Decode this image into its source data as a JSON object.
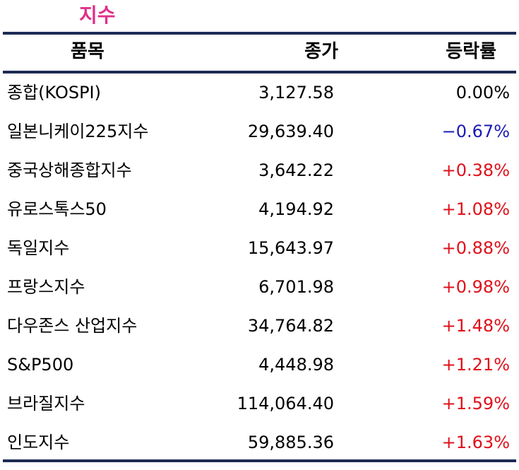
{
  "header": {
    "title": "지수"
  },
  "table": {
    "columns": [
      "품목",
      "종가",
      "등락률"
    ],
    "rows": [
      [
        "종합(KOSPI)",
        "3,127.58",
        "0.00%"
      ],
      [
        "일본니케이225지수",
        "29,639.40",
        "−0.67%"
      ],
      [
        "중국상해종합지수",
        "3,642.22",
        "+0.38%"
      ],
      [
        "유로스톡스50",
        "4,194.92",
        "+1.08%"
      ],
      [
        "독일지수",
        "15,643.97",
        "+0.88%"
      ],
      [
        "프랑스지수",
        "6,701.98",
        "+0.98%"
      ],
      [
        "다우존스 산업지수",
        "34,764.82",
        "+1.48%"
      ],
      [
        "S&P500",
        "4,448.98",
        "+1.21%"
      ],
      [
        "브라질지수",
        "114,064.40",
        "+1.59%"
      ],
      [
        "인도지수",
        "59,885.36",
        "+1.63%"
      ]
    ]
  }
}
